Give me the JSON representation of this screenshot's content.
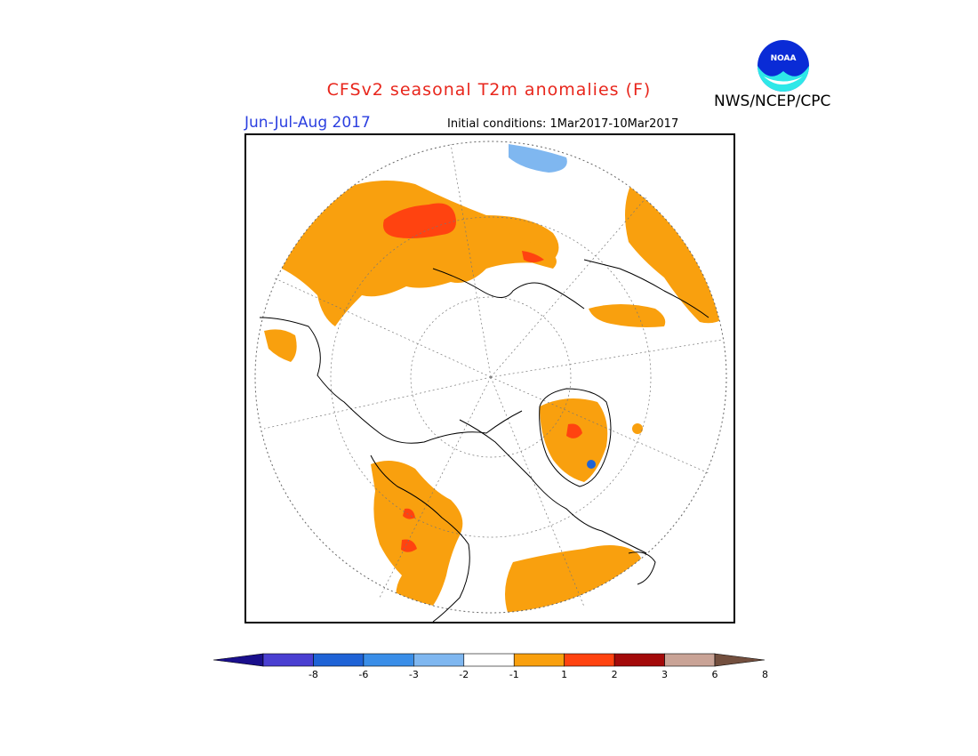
{
  "header": {
    "title": "CFSv2 seasonal T2m anomalies (F)",
    "season": "Jun-Jul-Aug 2017",
    "initial_conditions": "Initial conditions: 1Mar2017-10Mar2017",
    "agency": "NWS/NCEP/CPC",
    "logo_text": "NOAA"
  },
  "legend": {
    "labels": [
      "-8",
      "-6",
      "-3",
      "-2",
      "-1",
      "1",
      "2",
      "3",
      "6",
      "8"
    ],
    "colors": [
      "#1a0f8c",
      "#4a3fd1",
      "#1f63d6",
      "#3a8ee8",
      "#7fb7f0",
      "#ffffff",
      "#f9a00e",
      "#ff4310",
      "#a30a0a",
      "#c9a396",
      "#734f3e"
    ]
  },
  "map": {
    "projection": "north polar stereographic",
    "anomaly_colors": {
      "warm1": "#f9a00e",
      "warm2": "#ff4310",
      "cool1": "#7fb7f0",
      "cool2": "#1f63d6"
    }
  }
}
